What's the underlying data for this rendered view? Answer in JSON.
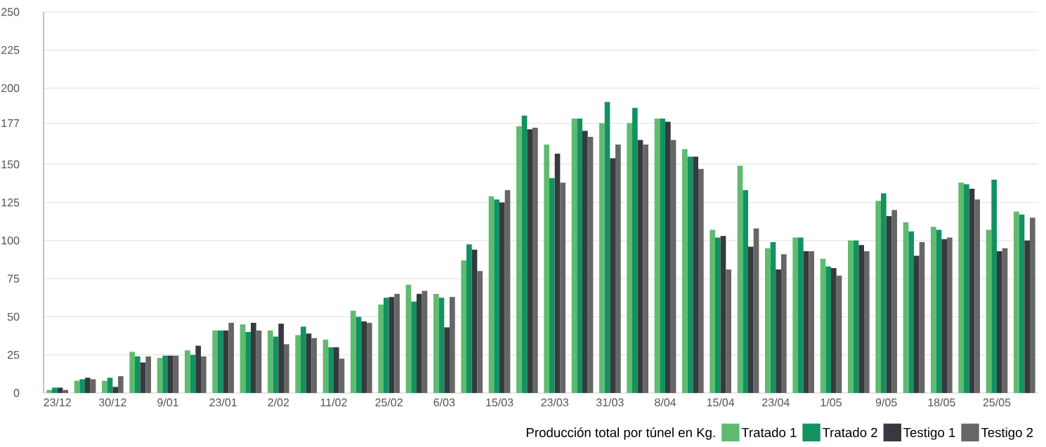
{
  "chart_data": {
    "type": "bar",
    "legend_title": "Producción total por túnel en Kg.",
    "categories": [
      "23/12",
      null,
      "30/12",
      null,
      "9/01",
      null,
      "23/01",
      null,
      "2/02",
      null,
      "11/02",
      null,
      "25/02",
      null,
      "6/03",
      null,
      "15/03",
      null,
      "23/03",
      null,
      "31/03",
      null,
      "8/04",
      null,
      "15/04",
      null,
      "23/04",
      null,
      "1/05",
      null,
      "9/05",
      null,
      "18/05",
      null,
      "25/05",
      null
    ],
    "series": [
      {
        "name": "Tratado 1",
        "color": "#5fbb6f",
        "values": [
          2,
          8,
          8,
          27,
          23,
          28,
          41,
          45,
          41,
          38,
          35,
          54,
          58,
          71,
          65,
          87,
          129,
          175,
          163,
          180,
          177,
          177,
          180,
          160,
          107,
          149,
          95,
          102,
          88,
          100,
          126,
          112,
          109,
          138,
          107,
          119
        ]
      },
      {
        "name": "Tratado 2",
        "color": "#139261",
        "values": [
          3.5,
          9,
          10,
          24,
          24.5,
          25,
          41,
          40,
          37,
          43.5,
          30,
          50,
          62.5,
          60,
          62.5,
          97.5,
          127,
          182,
          141,
          180,
          191,
          187,
          180,
          155,
          102,
          133,
          99,
          102,
          83,
          100,
          131,
          106,
          107,
          137,
          140,
          117
        ]
      },
      {
        "name": "Testigo 1",
        "color": "#36393e",
        "values": [
          3.5,
          10,
          4,
          20,
          24.5,
          31,
          41,
          46,
          45.5,
          39,
          30,
          47,
          63,
          65,
          43,
          94,
          125,
          173,
          157,
          172,
          154,
          166,
          178,
          155,
          103,
          96,
          81,
          93,
          82,
          97,
          116,
          90,
          101,
          134,
          93,
          100
        ]
      },
      {
        "name": "Testigo 2",
        "color": "#666666",
        "values": [
          2,
          9,
          11,
          24,
          24.5,
          24,
          46,
          41,
          32,
          36,
          22.5,
          46,
          65,
          67,
          63,
          80,
          133,
          174,
          138,
          168,
          163,
          163,
          166,
          147,
          81,
          108,
          91,
          93,
          77,
          93,
          120,
          99,
          102,
          127,
          95,
          115
        ]
      }
    ],
    "ylim": [
      0,
      250
    ],
    "yticks": [
      0,
      25,
      50,
      75,
      100,
      125,
      150,
      177,
      200,
      225,
      250
    ],
    "grid": "y",
    "legend": "bottom right"
  }
}
